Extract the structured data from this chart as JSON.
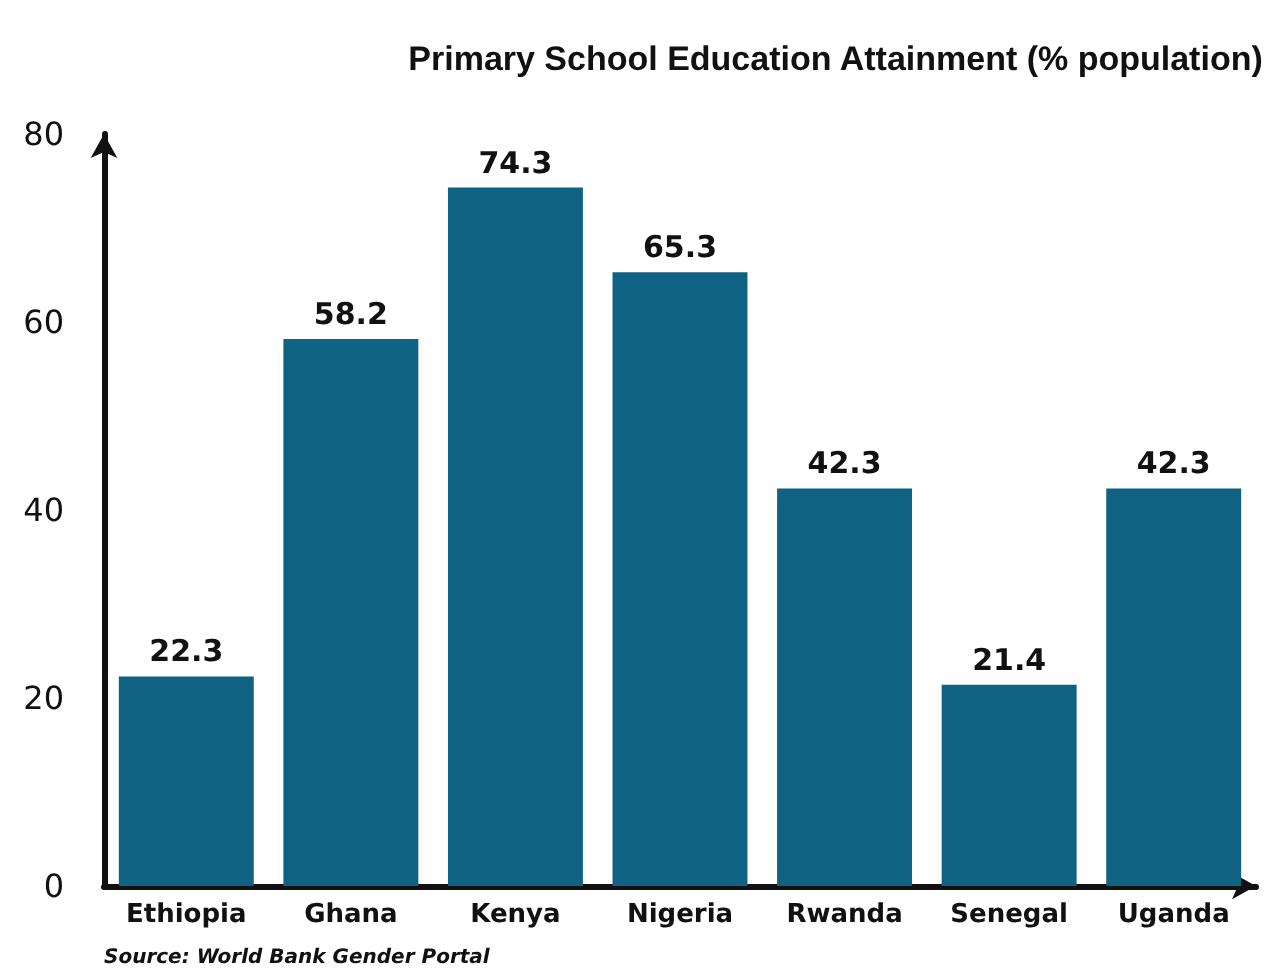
{
  "chart_data": {
    "type": "bar",
    "title": "Primary School Education Attainment (% population)",
    "categories": [
      "Ethiopia",
      "Ghana",
      "Kenya",
      "Nigeria",
      "Rwanda",
      "Senegal",
      "Uganda"
    ],
    "values": [
      22.3,
      58.2,
      74.3,
      65.3,
      42.3,
      21.4,
      42.3
    ],
    "color": "#0f6282",
    "ylim": [
      0,
      80
    ],
    "yticks": [
      0,
      20,
      40,
      60,
      80
    ],
    "grid": false,
    "data_labels": true,
    "annotations": [
      "Source: World Bank Gender Portal"
    ]
  }
}
